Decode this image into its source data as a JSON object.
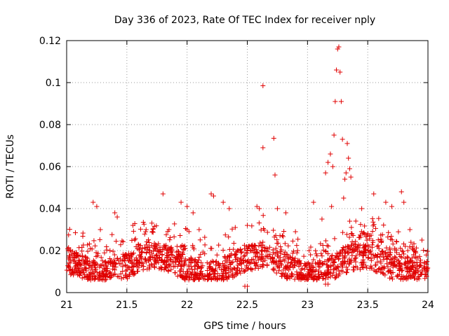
{
  "chart_data": {
    "type": "scatter",
    "title": "Day 336 of 2023, Rate Of TEC Index for receiver nply",
    "xlabel": "GPS time / hours",
    "ylabel": "ROTI / TECUs",
    "xlim": [
      21,
      24
    ],
    "ylim": [
      0,
      0.12
    ],
    "x_ticks": [
      "21",
      "21.5",
      "22",
      "22.5",
      "23",
      "23.5",
      "24"
    ],
    "y_ticks": [
      "0",
      "0.02",
      "0.04",
      "0.06",
      "0.08",
      "0.1",
      "0.12"
    ],
    "grid": true,
    "marker": "plus",
    "color": "#e00000",
    "series": [
      {
        "values": [
          [
            21.22,
            0.043
          ],
          [
            21.25,
            0.041
          ],
          [
            21.28,
            0.03
          ],
          [
            21.4,
            0.038
          ],
          [
            21.42,
            0.036
          ],
          [
            21.55,
            0.032
          ],
          [
            21.8,
            0.047
          ],
          [
            21.85,
            0.03
          ],
          [
            21.95,
            0.043
          ],
          [
            22.0,
            0.041
          ],
          [
            22.05,
            0.038
          ],
          [
            22.1,
            0.03
          ],
          [
            22.2,
            0.047
          ],
          [
            22.22,
            0.046
          ],
          [
            22.3,
            0.043
          ],
          [
            22.35,
            0.04
          ],
          [
            22.4,
            0.031
          ],
          [
            22.5,
            0.032
          ],
          [
            22.58,
            0.041
          ],
          [
            22.6,
            0.04
          ],
          [
            22.75,
            0.04
          ],
          [
            22.82,
            0.038
          ],
          [
            22.9,
            0.029
          ],
          [
            23.05,
            0.043
          ],
          [
            23.12,
            0.035
          ],
          [
            23.2,
            0.041
          ],
          [
            23.3,
            0.045
          ],
          [
            23.35,
            0.034
          ],
          [
            23.45,
            0.04
          ],
          [
            23.55,
            0.047
          ],
          [
            23.65,
            0.043
          ],
          [
            23.7,
            0.041
          ],
          [
            23.78,
            0.048
          ],
          [
            23.8,
            0.043
          ],
          [
            23.85,
            0.03
          ],
          [
            23.95,
            0.025
          ],
          [
            22.48,
            0.003
          ],
          [
            22.5,
            0.003
          ],
          [
            23.15,
            0.004
          ],
          [
            23.17,
            0.004
          ],
          [
            22.63,
            0.0985
          ],
          [
            22.63,
            0.069
          ],
          [
            22.72,
            0.0735
          ],
          [
            22.73,
            0.056
          ],
          [
            23.15,
            0.057
          ],
          [
            23.17,
            0.062
          ],
          [
            23.19,
            0.066
          ],
          [
            23.21,
            0.06
          ],
          [
            23.22,
            0.075
          ],
          [
            23.23,
            0.091
          ],
          [
            23.24,
            0.106
          ],
          [
            23.25,
            0.116
          ],
          [
            23.26,
            0.117
          ],
          [
            23.27,
            0.105
          ],
          [
            23.28,
            0.091
          ],
          [
            23.29,
            0.073
          ],
          [
            23.31,
            0.054
          ],
          [
            23.32,
            0.057
          ],
          [
            23.33,
            0.071
          ],
          [
            23.34,
            0.064
          ],
          [
            23.35,
            0.059
          ],
          [
            23.36,
            0.055
          ]
        ]
      }
    ]
  }
}
